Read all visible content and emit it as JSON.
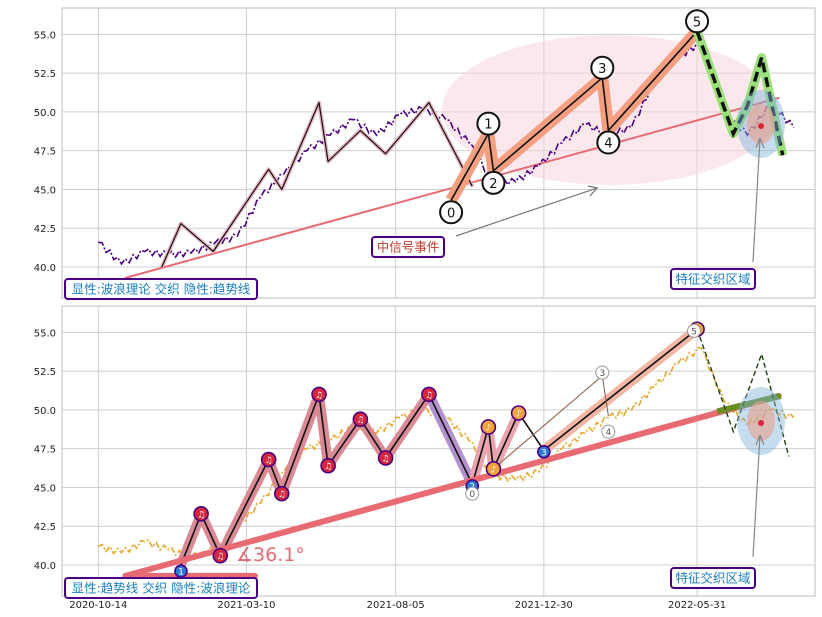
{
  "colors": {
    "grid": "#cfcfcf",
    "axis_text": "#222222",
    "price_top": "#4b0082",
    "price_bottom": "#e8a82a",
    "trend": "#e86a72",
    "wave_fill": "#f4a080",
    "wave_line": "#111111",
    "ellipse_pink": "#f7d6dc",
    "highlight_green": "#9be07a",
    "dark_green": "#6b8e23",
    "blue_zone": "#7fb3dc",
    "label_border": "#4b0082",
    "label_text_blue": "#1a7fbf",
    "label_text_red": "#c0392b",
    "marker_red": "#d7263d",
    "marker_orange": "#f2a33a",
    "marker_blue": "#2b7bd6"
  },
  "chart_data": [
    {
      "type": "line",
      "panel": "top",
      "x": [
        "2020-10-14",
        "2020-11-06",
        "2020-11-29",
        "2020-12-22",
        "2021-01-14",
        "2021-02-06",
        "2021-03-01",
        "2021-03-24",
        "2021-04-16",
        "2021-05-09",
        "2021-06-01",
        "2021-06-24",
        "2021-07-17",
        "2021-08-09",
        "2021-09-01",
        "2021-09-24",
        "2021-10-17",
        "2021-11-09",
        "2021-12-02",
        "2021-12-25",
        "2022-01-17",
        "2022-02-09",
        "2022-03-04",
        "2022-03-27",
        "2022-04-19",
        "2022-05-12",
        "2022-06-04",
        "2022-06-27",
        "2022-07-20",
        "2022-08-12",
        "2022-09-04"
      ],
      "series": [
        {
          "values": [
            41.6,
            40.2,
            41.0,
            40.8,
            40.9,
            41.5,
            42.0,
            44.5,
            46.0,
            47.5,
            48.5,
            49.5,
            48.5,
            49.8,
            50.2,
            49.5,
            48.0,
            45.5,
            45.5,
            46.5,
            48.0,
            49.2,
            48.5,
            49.0,
            52.0,
            53.5,
            54.5,
            50.0,
            48.5,
            50.5,
            49.0
          ]
        }
      ],
      "ylim": [
        38,
        56.7
      ],
      "yticks": [
        "40.0",
        "42.5",
        "45.0",
        "47.5",
        "50.0",
        "52.5",
        "55.0"
      ],
      "wave_points": [
        {
          "date": "2021-09-29",
          "value": 44.3,
          "label": "0"
        },
        {
          "date": "2021-11-05",
          "value": 48.6,
          "label": "1"
        },
        {
          "date": "2021-11-10",
          "value": 46.2,
          "label": "2"
        },
        {
          "date": "2022-02-26",
          "value": 52.2,
          "label": "3"
        },
        {
          "date": "2022-03-04",
          "value": 48.8,
          "label": "4"
        },
        {
          "date": "2022-05-31",
          "value": 55.2,
          "label": "5"
        }
      ],
      "annotations": [
        "中信号事件",
        "特征交织区域"
      ],
      "legend_box": "显性:波浪理论 交织 隐性:趋势线"
    },
    {
      "type": "line",
      "panel": "bottom",
      "x_ticks": [
        "2020-10-14",
        "2021-03-10",
        "2021-08-05",
        "2021-12-30",
        "2022-05-31"
      ],
      "series": [
        {
          "values": [
            41.2,
            40.8,
            41.5,
            41.0,
            40.5,
            41.0,
            42.5,
            44.0,
            46.0,
            47.5,
            48.0,
            49.0,
            48.5,
            49.5,
            50.0,
            49.5,
            48.0,
            45.8,
            45.5,
            46.0,
            47.5,
            48.5,
            49.5,
            50.0,
            51.5,
            53.0,
            54.0,
            50.5,
            49.0,
            50.0,
            49.5
          ]
        }
      ],
      "ylim": [
        38,
        56.7
      ],
      "yticks": [
        "40.0",
        "42.5",
        "45.0",
        "47.5",
        "50.0",
        "52.5",
        "55.0"
      ],
      "trend_angle_label": "∡36.1°",
      "annotations": [
        "特征交织区域"
      ],
      "legend_box": "显性:趋势线 交织 隐性:波浪理论"
    }
  ]
}
